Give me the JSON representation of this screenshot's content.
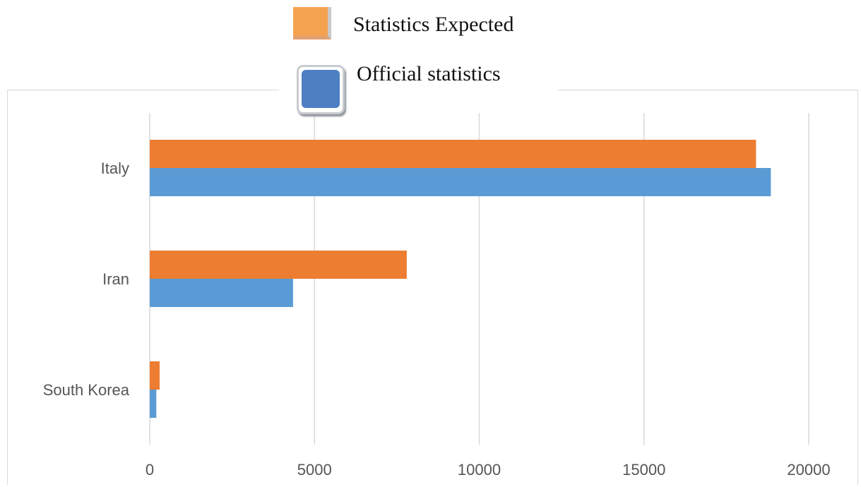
{
  "legend": {
    "expected_label": "Statistics Expected",
    "official_label": "Official statistics"
  },
  "chart_data": {
    "type": "bar",
    "orientation": "horizontal",
    "categories": [
      "Italy",
      "Iran",
      "South Korea"
    ],
    "series": [
      {
        "name": "Statistics Expected",
        "color": "#ed7d31",
        "values": [
          18400,
          7800,
          300
        ]
      },
      {
        "name": "Official statistics",
        "color": "#5b9bd5",
        "values": [
          18850,
          4350,
          200
        ]
      }
    ],
    "xlim": [
      0,
      20000
    ],
    "xticks": [
      0,
      5000,
      10000,
      15000,
      20000
    ],
    "grid": true,
    "legend_position": "top"
  },
  "colors": {
    "grid": "#d9d9d9",
    "tick_text": "#555555"
  }
}
